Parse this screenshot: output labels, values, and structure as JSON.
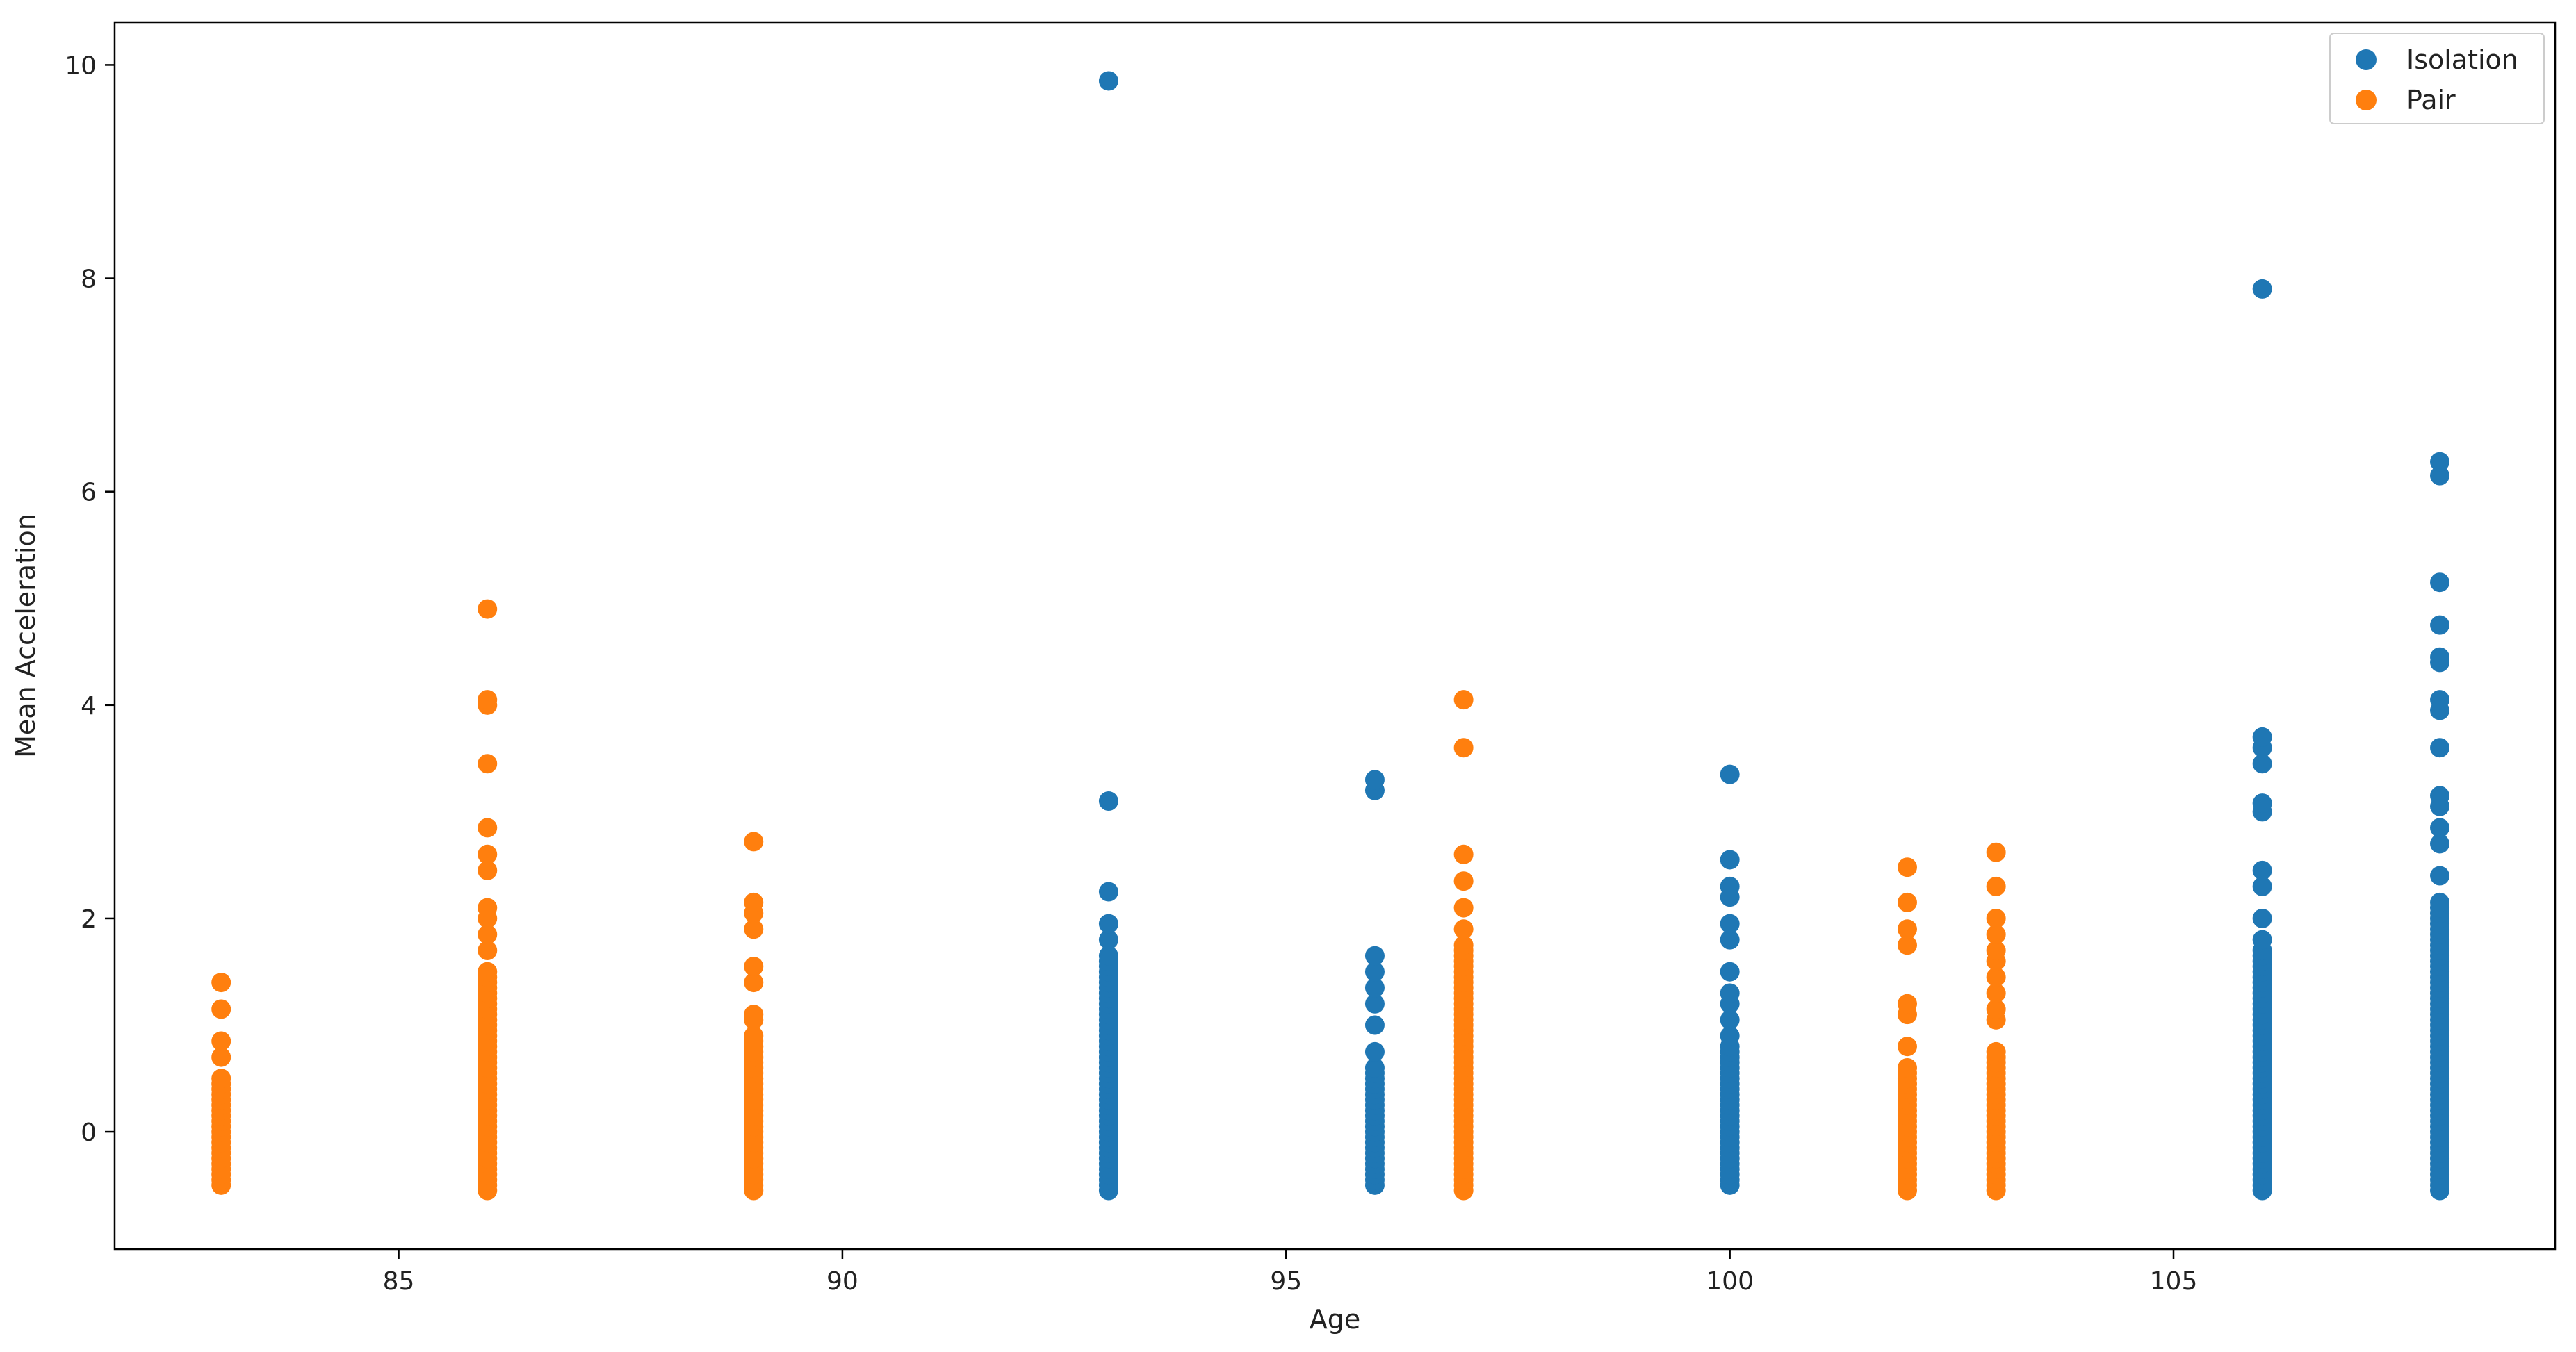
{
  "chart_data": {
    "type": "scatter",
    "title": "",
    "xlabel": "Age",
    "ylabel": "Mean Acceleration",
    "xlim": [
      81.8,
      109.3
    ],
    "ylim": [
      -1.1,
      10.4
    ],
    "xticks": [
      85,
      90,
      95,
      100,
      105
    ],
    "yticks": [
      0,
      2,
      4,
      6,
      8,
      10
    ],
    "grid": false,
    "legend_position": "top-right",
    "series": [
      {
        "name": "Isolation",
        "color": "#1f77b4",
        "columns": [
          {
            "x": 93,
            "min": -0.55,
            "max": 1.6,
            "outliers": [
              1.65,
              1.8,
              1.95,
              2.25,
              3.1,
              9.85
            ]
          },
          {
            "x": 96,
            "min": -0.5,
            "max": 0.6,
            "outliers": [
              0.75,
              1.0,
              1.2,
              1.35,
              1.5,
              1.65,
              3.2,
              3.3
            ]
          },
          {
            "x": 100,
            "min": -0.5,
            "max": 0.8,
            "outliers": [
              0.9,
              1.05,
              1.2,
              1.3,
              1.5,
              1.8,
              1.95,
              2.2,
              2.3,
              2.55,
              3.35
            ]
          },
          {
            "x": 106,
            "min": -0.55,
            "max": 1.7,
            "outliers": [
              1.8,
              2.0,
              2.3,
              2.45,
              3.0,
              3.08,
              3.45,
              3.6,
              3.7,
              7.9
            ]
          },
          {
            "x": 108,
            "min": -0.55,
            "max": 2.15,
            "outliers": [
              2.4,
              2.7,
              2.85,
              3.05,
              3.15,
              3.6,
              3.95,
              4.05,
              4.4,
              4.45,
              4.75,
              5.15,
              6.15,
              6.28
            ]
          }
        ]
      },
      {
        "name": "Pair",
        "color": "#ff7f0e",
        "columns": [
          {
            "x": 83,
            "min": -0.5,
            "max": 0.5,
            "outliers": [
              0.7,
              0.85,
              1.15,
              1.4
            ]
          },
          {
            "x": 86,
            "min": -0.55,
            "max": 1.5,
            "outliers": [
              1.7,
              1.85,
              2.0,
              2.1,
              2.45,
              2.6,
              2.85,
              3.45,
              4.0,
              4.05,
              4.9
            ]
          },
          {
            "x": 89,
            "min": -0.55,
            "max": 0.9,
            "outliers": [
              1.05,
              1.1,
              1.4,
              1.55,
              1.9,
              2.05,
              2.15,
              2.72
            ]
          },
          {
            "x": 97,
            "min": -0.55,
            "max": 1.75,
            "outliers": [
              1.9,
              2.1,
              2.35,
              2.6,
              3.6,
              4.05
            ]
          },
          {
            "x": 102,
            "min": -0.55,
            "max": 0.6,
            "outliers": [
              0.8,
              1.1,
              1.2,
              1.75,
              1.9,
              2.15,
              2.48
            ]
          },
          {
            "x": 103,
            "min": -0.55,
            "max": 0.75,
            "outliers": [
              1.05,
              1.15,
              1.3,
              1.45,
              1.6,
              1.7,
              1.85,
              2.0,
              2.3,
              2.62
            ]
          }
        ]
      }
    ]
  }
}
